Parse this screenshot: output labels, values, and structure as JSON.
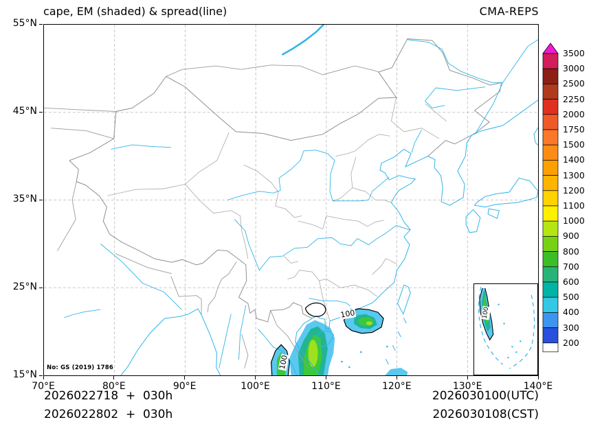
{
  "header": {
    "title": "cape, EM (shaded) & spread(line)",
    "model": "CMA-REPS"
  },
  "footer": {
    "left_line1": "2026022718  +  030h",
    "left_line2": "2026022802  +  030h",
    "right_line1": "2026030100(UTC)",
    "right_line2": "2026030108(CST)"
  },
  "map": {
    "note": "No: GS (2019) 1786",
    "x_tick_labels": [
      "70°E",
      "80°E",
      "90°E",
      "100°E",
      "110°E",
      "120°E",
      "130°E",
      "140°E"
    ],
    "y_tick_labels": [
      "55°N",
      "45°N",
      "35°N",
      "25°N",
      "15°N"
    ]
  },
  "chart_data": {
    "type": "heatmap",
    "title": "cape, EM (shaded) & spread(line)",
    "source": "CMA-REPS",
    "shaded_field": "cape ensemble mean",
    "contour_field": "cape ensemble spread",
    "lon_range": [
      70,
      140
    ],
    "lat_range": [
      15,
      55
    ],
    "grid_interval_deg": 10,
    "contour_labels": [
      {
        "value": "100",
        "lon": 113.0,
        "lat": 22.05,
        "rotation": -10
      },
      {
        "value": "100",
        "lon": 103.9,
        "lat": 16.6,
        "rotation": -78
      },
      {
        "value": "100",
        "inset": true,
        "x": 17,
        "y": 42,
        "rotation": -80
      }
    ],
    "shaded_regions": [
      {
        "name": "gulf-of-tonkin-vietnam-hainan",
        "approx_lon": [
          104.5,
          111.5
        ],
        "approx_lat": [
          15,
          21.5
        ],
        "peak_band": "800-1100"
      },
      {
        "name": "south-china-coastal-waters",
        "approx_lon": [
          112.5,
          118.1
        ],
        "approx_lat": [
          19.8,
          22.6
        ],
        "peak_band": "800-1100"
      },
      {
        "name": "indochina-inland",
        "approx_lon": [
          102.2,
          104.8
        ],
        "approx_lat": [
          15,
          18.5
        ],
        "peak_band": "600-800"
      }
    ],
    "colorbar": {
      "levels_top_to_bottom": [
        3500,
        3000,
        2500,
        2250,
        2000,
        1750,
        1500,
        1400,
        1300,
        1200,
        1100,
        1000,
        900,
        800,
        700,
        600,
        500,
        400,
        300,
        200
      ],
      "band_colors_top_to_bottom": [
        "#d21e5a",
        "#8c2014",
        "#b03a1e",
        "#e03020",
        "#ef5a28",
        "#fa7828",
        "#fc8c14",
        "#fda000",
        "#ffb400",
        "#ffd200",
        "#fff000",
        "#b4e614",
        "#78d214",
        "#3cbe28",
        "#28b478",
        "#00b4a5",
        "#32c8e6",
        "#3c96f0",
        "#2850dc"
      ],
      "over_color": "#f318d8",
      "under_color": "#ffffff"
    }
  }
}
